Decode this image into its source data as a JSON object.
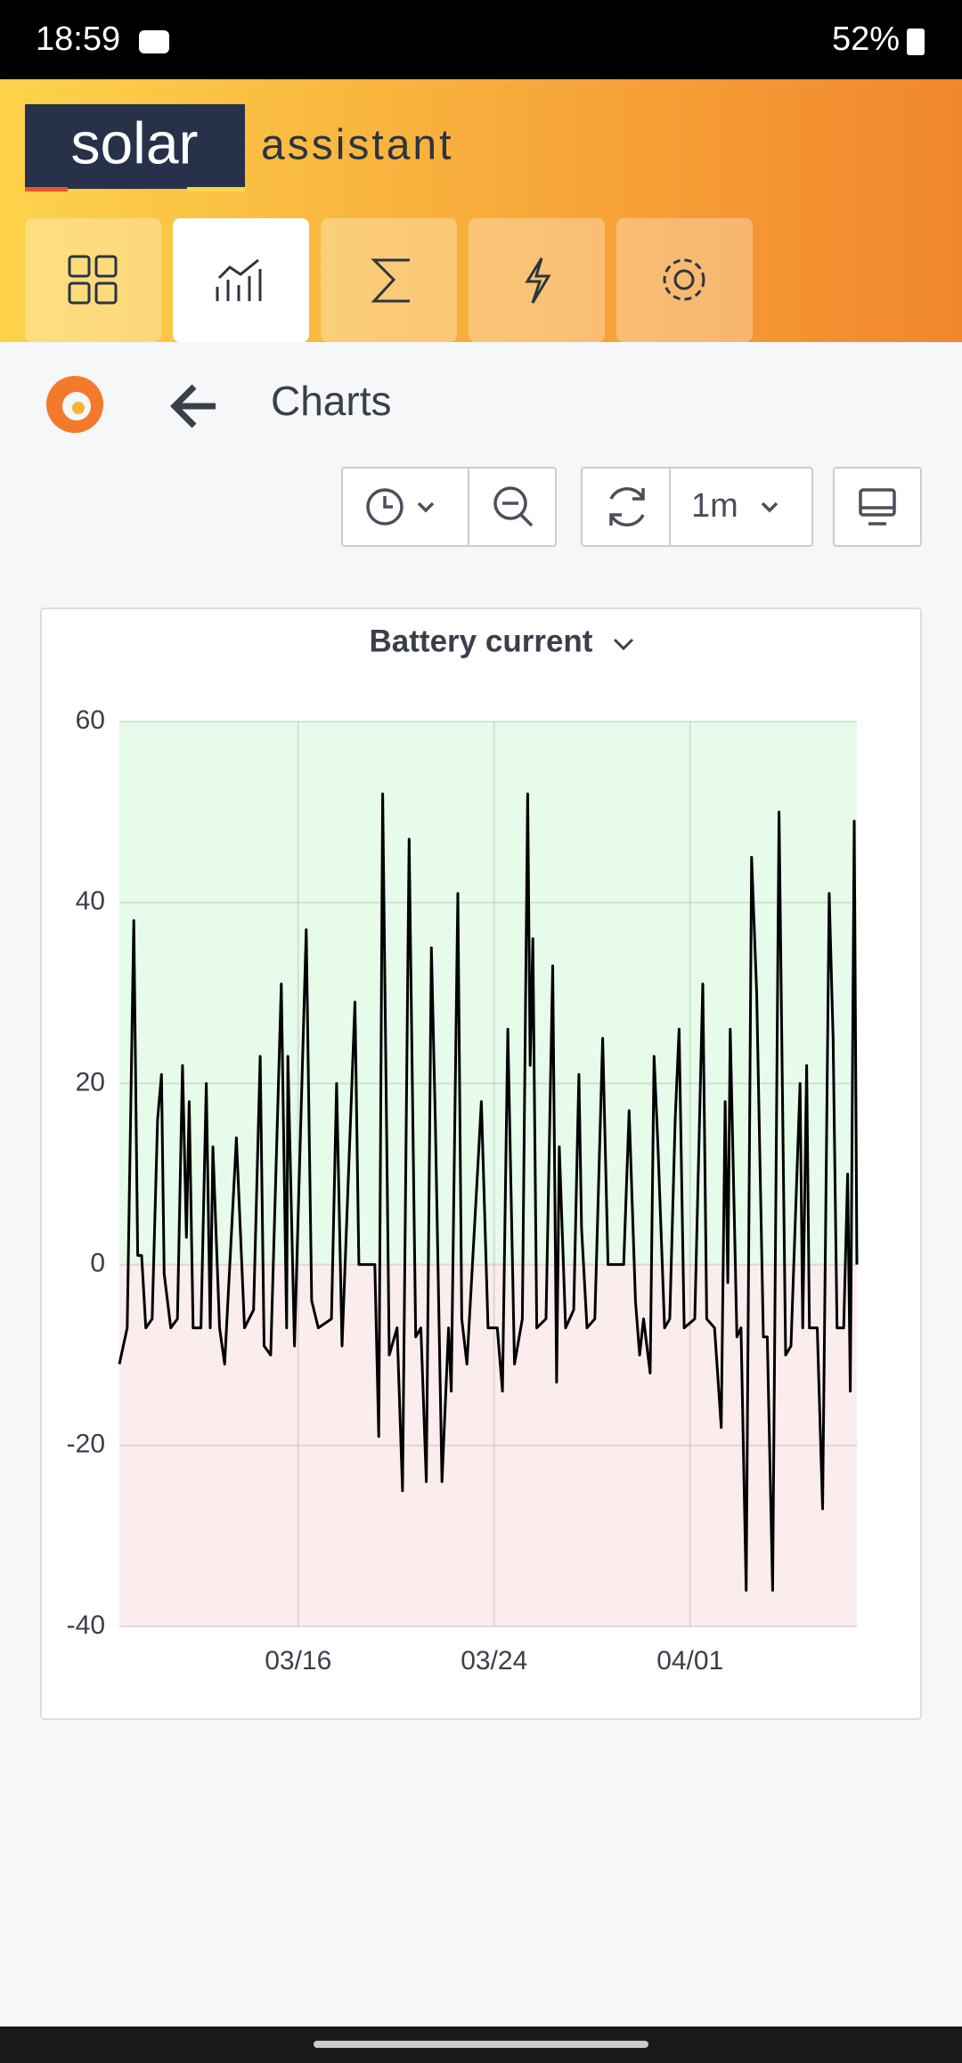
{
  "status_bar": {
    "time": "18:59",
    "battery": "52%"
  },
  "header": {
    "logo_box": "solar",
    "logo_text": "assistant"
  },
  "page": {
    "title": "Charts",
    "refresh_interval": "1m"
  },
  "chart_data": {
    "type": "line",
    "title": "Battery current",
    "x": [
      7.7,
      8.02,
      8.29,
      8.45,
      8.61,
      8.78,
      9.04,
      9.26,
      9.42,
      9.53,
      9.8,
      10.07,
      10.28,
      10.44,
      10.55,
      10.71,
      11.03,
      11.25,
      11.41,
      11.52,
      11.79,
      12.0,
      12.48,
      12.81,
      13.18,
      13.45,
      13.61,
      13.88,
      14.31,
      14.53,
      14.58,
      14.85,
      15.33,
      15.55,
      15.82,
      16.36,
      16.57,
      16.79,
      17.32,
      17.48,
      18.13,
      18.29,
      18.45,
      18.72,
      19.04,
      19.26,
      19.53,
      19.8,
      20.01,
      20.23,
      20.44,
      20.6,
      20.87,
      21.14,
      21.25,
      21.52,
      21.68,
      21.89,
      22.32,
      22.48,
      22.75,
      23.13,
      23.34,
      23.56,
      23.83,
      24.15,
      24.37,
      24.47,
      24.58,
      24.74,
      25.12,
      25.39,
      25.55,
      25.66,
      25.92,
      26.25,
      26.46,
      26.57,
      26.79,
      27.11,
      27.43,
      27.65,
      28.29,
      28.51,
      28.77,
      28.94,
      29.1,
      29.37,
      29.53,
      29.69,
      29.96,
      30.17,
      30.39,
      30.55,
      30.76,
      31.19,
      31.52,
      31.68,
      32.0,
      32.27,
      32.43,
      32.54,
      32.64,
      32.91,
      33.08,
      33.29,
      33.51,
      33.72,
      33.99,
      34.15,
      34.37,
      34.63,
      34.9,
      35.12,
      35.49,
      35.6,
      35.76,
      35.87,
      36.19,
      36.41,
      36.68,
      36.84,
      37.0,
      37.27,
      37.43,
      37.54,
      37.7,
      37.81
    ],
    "series": [
      {
        "color": "#000000",
        "values": [
          -11,
          -7,
          38,
          1,
          1,
          -7,
          -6,
          16,
          21,
          -1,
          -7,
          -6,
          22,
          3,
          18,
          -7,
          -7,
          20,
          -7,
          13,
          -7,
          -11,
          14,
          -7,
          -5,
          23,
          -9,
          -10,
          31,
          -7,
          23,
          -9,
          37,
          -4,
          -7,
          -6,
          20,
          -9,
          29,
          0,
          0,
          -19,
          52,
          -10,
          -7,
          -25,
          47,
          -8,
          -7,
          -24,
          35,
          16,
          -24,
          -7,
          -14,
          41,
          -6,
          -11,
          10,
          18,
          -7,
          -7,
          -14,
          26,
          -11,
          -6,
          52,
          22,
          36,
          -7,
          -6,
          33,
          -13,
          13,
          -7,
          -5,
          21,
          4,
          -7,
          -6,
          25,
          0,
          0,
          17,
          -4,
          -10,
          -6,
          -12,
          23,
          13,
          -7,
          -6,
          16,
          26,
          -7,
          -6,
          31,
          -6,
          -7,
          -18,
          18,
          -2,
          26,
          -8,
          -7,
          -36,
          45,
          30,
          -8,
          -8,
          -36,
          50,
          -10,
          -9,
          20,
          -7,
          22,
          -7,
          -7,
          -27,
          41,
          25,
          -7,
          -7,
          10,
          -14,
          49,
          0
        ]
      }
    ],
    "xlim": [
      7.7,
      37.81
    ],
    "xticks": [
      {
        "value": 15,
        "label": "03/16"
      },
      {
        "value": 23,
        "label": "03/24"
      },
      {
        "value": 31,
        "label": "04/01"
      }
    ],
    "ylim": [
      -40,
      60
    ],
    "yticks": [
      60,
      40,
      20,
      0,
      -20,
      -40
    ],
    "grid": true,
    "fill_above_zero": "#e6fbea",
    "fill_below_zero": "#fbeded"
  }
}
